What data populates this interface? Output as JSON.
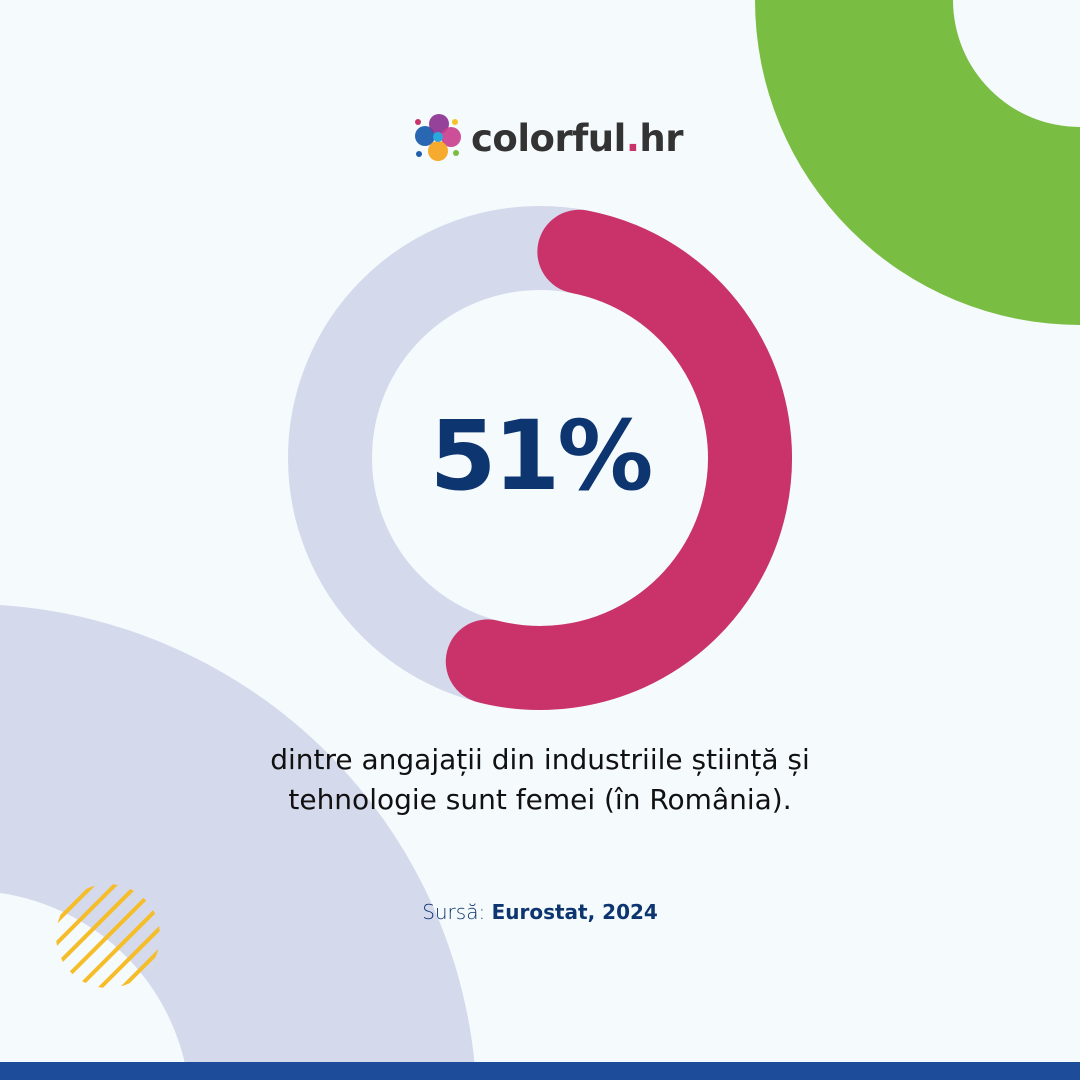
{
  "brand": {
    "name_main": "colorful",
    "name_dot": ".",
    "name_suffix": "hr"
  },
  "colors": {
    "background": "#f5fafd",
    "track": "#d5d9ec",
    "accent": "#c9336a",
    "green": "#7abd43",
    "navy": "#0d3570",
    "bar": "#1c4c9a",
    "stripes": "#f5bd2a"
  },
  "chart_data": {
    "type": "pie",
    "style": "donut",
    "values": [
      51,
      49
    ],
    "value_label": "51%"
  },
  "caption": {
    "line1": "dintre angajații din industriile știință și",
    "line2": "tehnologie sunt femei (în România)."
  },
  "source": {
    "label": "Sursă:",
    "value": "Eurostat, 2024"
  }
}
